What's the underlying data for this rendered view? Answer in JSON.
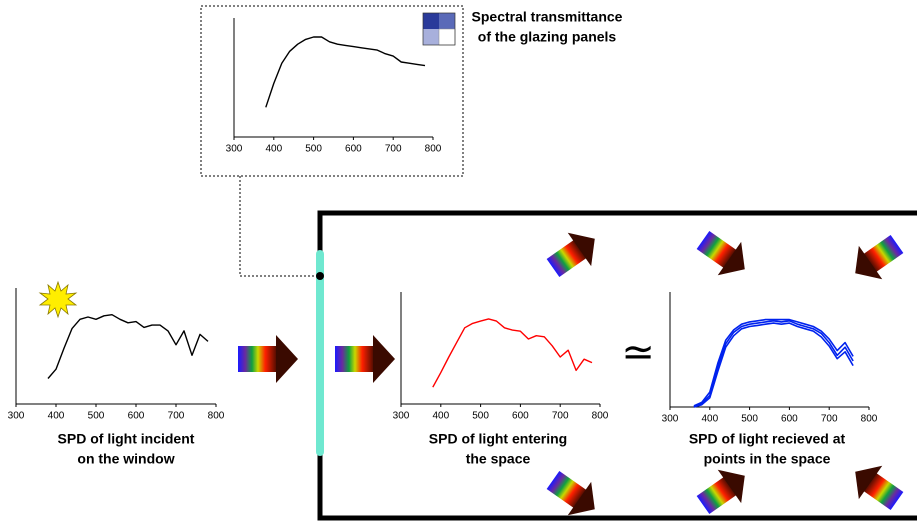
{
  "charts": [
    {
      "caption": [
        "Spectral transmittance",
        "of the glazing panels"
      ],
      "xlim": [
        300,
        800
      ],
      "ylim": [
        0,
        100
      ],
      "xticks": [
        300,
        400,
        500,
        600,
        700,
        800
      ],
      "x": [
        380,
        400,
        420,
        440,
        460,
        480,
        500,
        520,
        540,
        560,
        580,
        600,
        620,
        640,
        660,
        680,
        700,
        720,
        740,
        760,
        780
      ],
      "series": [
        {
          "color": "#000000",
          "values": [
            25,
            45,
            62,
            72,
            78,
            82,
            84,
            84,
            80,
            78,
            77,
            76,
            75,
            74,
            73,
            70,
            68,
            63,
            62,
            61,
            60
          ]
        }
      ]
    },
    {
      "caption": [
        "SPD of light incident",
        "on the window"
      ],
      "xlim": [
        300,
        800
      ],
      "ylim": [
        0,
        100
      ],
      "xticks": [
        300,
        400,
        500,
        600,
        700,
        800
      ],
      "x": [
        380,
        400,
        420,
        440,
        460,
        480,
        500,
        520,
        540,
        560,
        580,
        600,
        620,
        640,
        660,
        680,
        700,
        720,
        740,
        760,
        780
      ],
      "series": [
        {
          "color": "#000000",
          "values": [
            22,
            30,
            48,
            65,
            73,
            75,
            73,
            76,
            77,
            73,
            70,
            71,
            66,
            68,
            68,
            63,
            51,
            63,
            42,
            60,
            54
          ]
        }
      ]
    },
    {
      "caption": [
        "SPD of light entering",
        "the space"
      ],
      "xlim": [
        300,
        800
      ],
      "ylim": [
        0,
        100
      ],
      "xticks": [
        300,
        400,
        500,
        600,
        700,
        800
      ],
      "x": [
        380,
        400,
        420,
        440,
        460,
        480,
        500,
        520,
        540,
        560,
        580,
        600,
        620,
        640,
        660,
        680,
        700,
        720,
        740,
        760,
        780
      ],
      "series": [
        {
          "color": "#ff0000",
          "values": [
            15,
            28,
            42,
            55,
            68,
            72,
            74,
            76,
            74,
            68,
            66,
            65,
            58,
            61,
            60,
            52,
            42,
            48,
            30,
            40,
            37
          ]
        }
      ]
    },
    {
      "caption": [
        "SPD of light recieved at",
        "points in the space"
      ],
      "xlim": [
        300,
        800
      ],
      "ylim": [
        0,
        100
      ],
      "xticks": [
        300,
        400,
        500,
        600,
        700,
        800
      ],
      "x": [
        360,
        380,
        400,
        420,
        440,
        460,
        480,
        500,
        520,
        540,
        560,
        580,
        600,
        620,
        640,
        660,
        680,
        700,
        720,
        740,
        760
      ],
      "series": [
        {
          "color": "#0022ee",
          "values": [
            0,
            3,
            10,
            35,
            55,
            65,
            70,
            72,
            73,
            74,
            75,
            74,
            75,
            72,
            70,
            68,
            64,
            56,
            45,
            52,
            40
          ]
        },
        {
          "color": "#0022ee",
          "values": [
            1,
            4,
            13,
            38,
            58,
            67,
            72,
            74,
            75,
            76,
            76,
            76,
            76,
            74,
            72,
            70,
            66,
            59,
            49,
            56,
            44
          ]
        },
        {
          "color": "#0022ee",
          "values": [
            0,
            2,
            8,
            31,
            52,
            62,
            68,
            70,
            71,
            72,
            73,
            72,
            73,
            70,
            68,
            66,
            61,
            53,
            42,
            48,
            36
          ]
        }
      ]
    }
  ],
  "relation": "≃"
}
